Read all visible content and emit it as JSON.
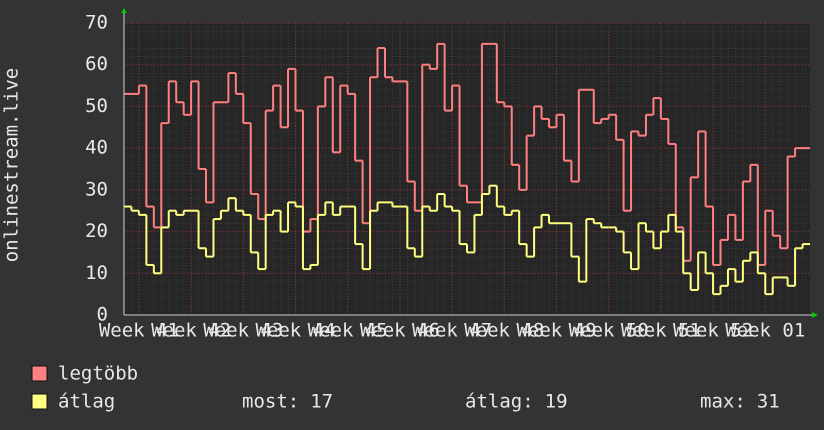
{
  "chart_data": {
    "type": "step-line",
    "y_axis_label": "onlinestream.live",
    "x": [
      0,
      1,
      2,
      3,
      4,
      5,
      6,
      7,
      8,
      9,
      10,
      11,
      12,
      13,
      14,
      15,
      16,
      17,
      18,
      19,
      20,
      21,
      22,
      23,
      24,
      25,
      26,
      27,
      28,
      29,
      30,
      31,
      32,
      33,
      34,
      35,
      36,
      37,
      38,
      39,
      40,
      41,
      42,
      43,
      44,
      45,
      46,
      47,
      48,
      49,
      50,
      51,
      52,
      53,
      54,
      55,
      56,
      57,
      58,
      59,
      60,
      61,
      62,
      63,
      64,
      65,
      66,
      67,
      68,
      69,
      70,
      71,
      72,
      73,
      74,
      75,
      76,
      77,
      78,
      79,
      80,
      81,
      82,
      83,
      84,
      85,
      86,
      87,
      88,
      89,
      90,
      91
    ],
    "xlim": [
      0,
      92
    ],
    "xticks": [
      {
        "value": 2,
        "label": "Week 41"
      },
      {
        "value": 9,
        "label": "Week 42"
      },
      {
        "value": 16,
        "label": "Week 43"
      },
      {
        "value": 23,
        "label": "Week 44"
      },
      {
        "value": 30,
        "label": "Week 45"
      },
      {
        "value": 37,
        "label": "Week 46"
      },
      {
        "value": 44,
        "label": "Week 47"
      },
      {
        "value": 51,
        "label": "Week 48"
      },
      {
        "value": 58,
        "label": "Week 49"
      },
      {
        "value": 65,
        "label": "Week 50"
      },
      {
        "value": 72,
        "label": "Week 51"
      },
      {
        "value": 79,
        "label": "Week 52"
      },
      {
        "value": 86,
        "label": "Week 01"
      }
    ],
    "ylim": [
      0,
      70
    ],
    "yticks": [
      0,
      10,
      20,
      30,
      40,
      50,
      60,
      70
    ],
    "grid": true,
    "series": [
      {
        "name": "legtöbb",
        "color": "#ff8080",
        "values": [
          53,
          53,
          55,
          26,
          21,
          46,
          56,
          51,
          48,
          56,
          35,
          27,
          51,
          51,
          58,
          53,
          46,
          29,
          23,
          49,
          55,
          45,
          59,
          49,
          20,
          23,
          50,
          57,
          39,
          55,
          53,
          37,
          22,
          57,
          64,
          57,
          56,
          56,
          32,
          25,
          60,
          59,
          65,
          49,
          55,
          31,
          27,
          27,
          65,
          65,
          51,
          50,
          36,
          30,
          43,
          50,
          47,
          45,
          48,
          37,
          32,
          54,
          54,
          46,
          47,
          48,
          42,
          25,
          44,
          43,
          48,
          52,
          47,
          41,
          21,
          13,
          33,
          44,
          26,
          12,
          18,
          24,
          18,
          32,
          36,
          12,
          25,
          19,
          16,
          38,
          40,
          40
        ]
      },
      {
        "name": "átlag",
        "color": "#ffff80",
        "values": [
          26,
          25,
          24,
          12,
          10,
          21,
          25,
          24,
          25,
          25,
          16,
          14,
          23,
          25,
          28,
          25,
          24,
          15,
          11,
          24,
          25,
          20,
          27,
          26,
          11,
          12,
          24,
          27,
          24,
          26,
          26,
          17,
          11,
          25,
          27,
          27,
          26,
          26,
          16,
          14,
          26,
          25,
          29,
          26,
          25,
          17,
          15,
          24,
          29,
          31,
          26,
          24,
          25,
          17,
          14,
          21,
          24,
          22,
          22,
          22,
          14,
          8,
          23,
          22,
          21,
          21,
          20,
          15,
          11,
          22,
          20,
          16,
          20,
          24,
          20,
          10,
          6,
          15,
          10,
          5,
          7,
          11,
          8,
          13,
          15,
          10,
          5,
          9,
          9,
          7,
          16,
          17
        ]
      }
    ],
    "stats": [
      {
        "label": "most:",
        "value": 17
      },
      {
        "label": "átlag:",
        "value": 19
      },
      {
        "label": "max:",
        "value": 31
      }
    ]
  }
}
